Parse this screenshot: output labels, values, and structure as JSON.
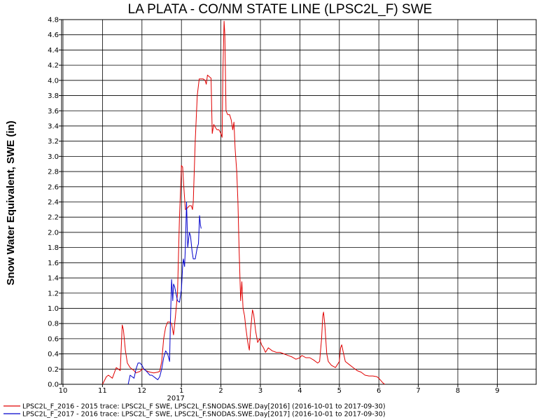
{
  "chart_data": {
    "type": "line",
    "title": "LA PLATA - CO/NM STATE LINE (LPSC2L_F) SWE",
    "ylabel": "Snow Water Equivalent, SWE (in)",
    "xlabel": "",
    "x_tick_labels": [
      "10",
      "11",
      "12",
      "1",
      "2",
      "3",
      "4",
      "5",
      "6",
      "7",
      "8",
      "9"
    ],
    "x_year_label": "2017",
    "ylim": [
      0,
      4.8
    ],
    "y_ticks": [
      "0.0",
      "0.2",
      "0.4",
      "0.6",
      "0.8",
      "1.0",
      "1.2",
      "1.4",
      "1.6",
      "1.8",
      "2.0",
      "2.2",
      "2.4",
      "2.6",
      "2.8",
      "3.0",
      "3.2",
      "3.4",
      "3.6",
      "3.8",
      "4.0",
      "4.2",
      "4.4",
      "4.6",
      "4.8"
    ],
    "x_unit": "months from October 1 (water year 2016-10-01 to 2017-09-30)",
    "xlim": [
      0,
      12
    ],
    "grid": true,
    "legend_position": "bottom",
    "series": [
      {
        "name": "LPSC2L_F_2016 - 2015 trace: LPSC2L_F SWE, LPSC2L_F.SNODAS.SWE.Day[2016] (2016-10-01 to 2017-09-30)",
        "color": "#e00000",
        "points": [
          [
            1.0,
            0.0
          ],
          [
            1.05,
            0.05
          ],
          [
            1.1,
            0.1
          ],
          [
            1.15,
            0.12
          ],
          [
            1.2,
            0.1
          ],
          [
            1.25,
            0.08
          ],
          [
            1.3,
            0.15
          ],
          [
            1.35,
            0.22
          ],
          [
            1.4,
            0.2
          ],
          [
            1.45,
            0.18
          ],
          [
            1.5,
            0.78
          ],
          [
            1.53,
            0.72
          ],
          [
            1.58,
            0.45
          ],
          [
            1.63,
            0.28
          ],
          [
            1.7,
            0.22
          ],
          [
            1.8,
            0.18
          ],
          [
            1.85,
            0.15
          ],
          [
            1.95,
            0.17
          ],
          [
            2.0,
            0.2
          ],
          [
            2.05,
            0.2
          ],
          [
            2.1,
            0.18
          ],
          [
            2.2,
            0.16
          ],
          [
            2.3,
            0.15
          ],
          [
            2.4,
            0.16
          ],
          [
            2.45,
            0.17
          ],
          [
            2.5,
            0.3
          ],
          [
            2.55,
            0.6
          ],
          [
            2.6,
            0.75
          ],
          [
            2.65,
            0.82
          ],
          [
            2.7,
            0.82
          ],
          [
            2.75,
            0.8
          ],
          [
            2.8,
            0.65
          ],
          [
            2.85,
            0.9
          ],
          [
            2.9,
            1.2
          ],
          [
            2.95,
            2.2
          ],
          [
            2.98,
            2.6
          ],
          [
            3.0,
            2.88
          ],
          [
            3.03,
            2.86
          ],
          [
            3.06,
            2.6
          ],
          [
            3.1,
            2.3
          ],
          [
            3.15,
            2.32
          ],
          [
            3.2,
            2.35
          ],
          [
            3.25,
            2.35
          ],
          [
            3.28,
            2.3
          ],
          [
            3.3,
            2.4
          ],
          [
            3.35,
            3.2
          ],
          [
            3.4,
            3.8
          ],
          [
            3.45,
            4.02
          ],
          [
            3.5,
            4.02
          ],
          [
            3.55,
            4.02
          ],
          [
            3.6,
            4.0
          ],
          [
            3.63,
            3.95
          ],
          [
            3.66,
            4.07
          ],
          [
            3.7,
            4.05
          ],
          [
            3.75,
            4.03
          ],
          [
            3.78,
            3.3
          ],
          [
            3.82,
            3.42
          ],
          [
            3.86,
            3.38
          ],
          [
            3.9,
            3.35
          ],
          [
            3.95,
            3.35
          ],
          [
            4.0,
            3.3
          ],
          [
            4.03,
            3.25
          ],
          [
            4.05,
            4.1
          ],
          [
            4.08,
            4.78
          ],
          [
            4.1,
            4.6
          ],
          [
            4.13,
            3.6
          ],
          [
            4.17,
            3.55
          ],
          [
            4.22,
            3.55
          ],
          [
            4.26,
            3.48
          ],
          [
            4.3,
            3.35
          ],
          [
            4.33,
            3.45
          ],
          [
            4.36,
            3.1
          ],
          [
            4.4,
            2.8
          ],
          [
            4.43,
            2.4
          ],
          [
            4.46,
            1.8
          ],
          [
            4.5,
            1.1
          ],
          [
            4.53,
            1.35
          ],
          [
            4.56,
            1.0
          ],
          [
            4.6,
            0.9
          ],
          [
            4.63,
            0.75
          ],
          [
            4.68,
            0.55
          ],
          [
            4.72,
            0.45
          ],
          [
            4.75,
            0.7
          ],
          [
            4.8,
            0.98
          ],
          [
            4.83,
            0.92
          ],
          [
            4.88,
            0.7
          ],
          [
            4.93,
            0.55
          ],
          [
            4.98,
            0.6
          ],
          [
            5.03,
            0.52
          ],
          [
            5.08,
            0.48
          ],
          [
            5.13,
            0.42
          ],
          [
            5.2,
            0.48
          ],
          [
            5.3,
            0.44
          ],
          [
            5.4,
            0.42
          ],
          [
            5.5,
            0.42
          ],
          [
            5.6,
            0.4
          ],
          [
            5.7,
            0.38
          ],
          [
            5.8,
            0.36
          ],
          [
            5.9,
            0.33
          ],
          [
            6.0,
            0.35
          ],
          [
            6.05,
            0.38
          ],
          [
            6.15,
            0.35
          ],
          [
            6.25,
            0.35
          ],
          [
            6.35,
            0.32
          ],
          [
            6.45,
            0.28
          ],
          [
            6.5,
            0.3
          ],
          [
            6.55,
            0.6
          ],
          [
            6.58,
            0.9
          ],
          [
            6.6,
            0.95
          ],
          [
            6.63,
            0.8
          ],
          [
            6.68,
            0.4
          ],
          [
            6.72,
            0.3
          ],
          [
            6.8,
            0.25
          ],
          [
            6.9,
            0.22
          ],
          [
            6.95,
            0.26
          ],
          [
            7.0,
            0.3
          ],
          [
            7.03,
            0.48
          ],
          [
            7.06,
            0.52
          ],
          [
            7.1,
            0.42
          ],
          [
            7.15,
            0.3
          ],
          [
            7.25,
            0.26
          ],
          [
            7.35,
            0.22
          ],
          [
            7.45,
            0.18
          ],
          [
            7.55,
            0.16
          ],
          [
            7.65,
            0.12
          ],
          [
            7.75,
            0.11
          ],
          [
            7.85,
            0.11
          ],
          [
            7.95,
            0.1
          ],
          [
            8.0,
            0.08
          ],
          [
            8.05,
            0.05
          ],
          [
            8.1,
            0.02
          ],
          [
            8.15,
            0.0
          ]
        ]
      },
      {
        "name": "LPSC2L_F_2017 - 2016 trace: LPSC2L_F SWE, LPSC2L_F.SNODAS.SWE.Day[2017] (2016-10-01 to 2017-09-30)",
        "color": "#0000cc",
        "points": [
          [
            1.65,
            0.0
          ],
          [
            1.7,
            0.12
          ],
          [
            1.75,
            0.1
          ],
          [
            1.8,
            0.08
          ],
          [
            1.85,
            0.2
          ],
          [
            1.9,
            0.28
          ],
          [
            1.95,
            0.28
          ],
          [
            2.0,
            0.25
          ],
          [
            2.05,
            0.2
          ],
          [
            2.1,
            0.18
          ],
          [
            2.15,
            0.15
          ],
          [
            2.2,
            0.12
          ],
          [
            2.25,
            0.12
          ],
          [
            2.3,
            0.1
          ],
          [
            2.35,
            0.08
          ],
          [
            2.4,
            0.06
          ],
          [
            2.45,
            0.1
          ],
          [
            2.5,
            0.2
          ],
          [
            2.55,
            0.35
          ],
          [
            2.6,
            0.44
          ],
          [
            2.65,
            0.4
          ],
          [
            2.7,
            0.3
          ],
          [
            2.72,
            0.8
          ],
          [
            2.75,
            1.38
          ],
          [
            2.78,
            1.1
          ],
          [
            2.8,
            1.32
          ],
          [
            2.83,
            1.28
          ],
          [
            2.86,
            1.2
          ],
          [
            2.9,
            1.1
          ],
          [
            2.95,
            1.08
          ],
          [
            3.0,
            1.25
          ],
          [
            3.03,
            1.55
          ],
          [
            3.05,
            1.65
          ],
          [
            3.08,
            1.55
          ],
          [
            3.1,
            1.8
          ],
          [
            3.13,
            2.4
          ],
          [
            3.16,
            1.8
          ],
          [
            3.2,
            2.0
          ],
          [
            3.23,
            1.95
          ],
          [
            3.27,
            1.75
          ],
          [
            3.3,
            1.65
          ],
          [
            3.35,
            1.65
          ],
          [
            3.4,
            1.8
          ],
          [
            3.43,
            1.85
          ],
          [
            3.46,
            2.22
          ],
          [
            3.48,
            2.1
          ],
          [
            3.5,
            2.05
          ]
        ]
      }
    ]
  }
}
